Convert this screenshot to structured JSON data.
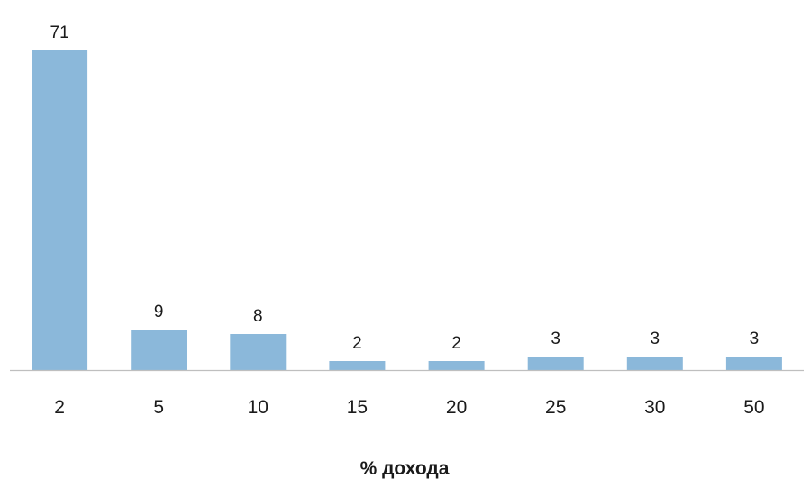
{
  "chart_data": {
    "type": "bar",
    "categories": [
      "2",
      "5",
      "10",
      "15",
      "20",
      "25",
      "30",
      "50"
    ],
    "values": [
      71,
      9,
      8,
      2,
      2,
      3,
      3,
      3
    ],
    "xlabel": "% дохода",
    "ylabel": "",
    "ylim": [
      0,
      71
    ],
    "grid": false,
    "legend": "none",
    "bar_color": "#8bb8da",
    "axis_color": "#bfbfbf"
  }
}
